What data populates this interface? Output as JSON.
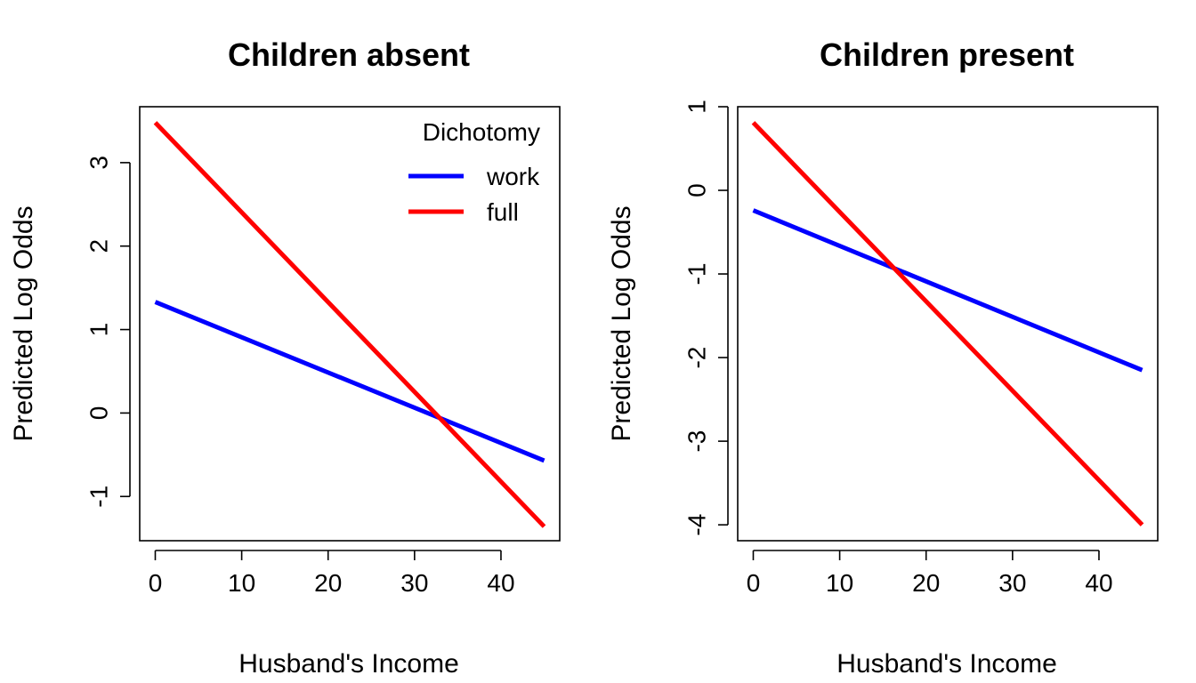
{
  "chart_data": [
    {
      "type": "line",
      "title": "Children absent",
      "xlabel": "Husband's Income",
      "ylabel": "Predicted Log Odds",
      "xlim": [
        -1.8,
        46.8
      ],
      "ylim": [
        -1.53,
        3.67
      ],
      "xticks": [
        0,
        10,
        20,
        30,
        40
      ],
      "yticks": [
        -1,
        0,
        1,
        2,
        3
      ],
      "grid": false,
      "legend": {
        "title": "Dichotomy",
        "position": "top-right"
      },
      "series": [
        {
          "name": "work",
          "color": "#0000FF",
          "x": [
            0,
            45
          ],
          "y": [
            1.33,
            -0.57
          ]
        },
        {
          "name": "full",
          "color": "#FF0000",
          "x": [
            0,
            45
          ],
          "y": [
            3.48,
            -1.36
          ]
        }
      ]
    },
    {
      "type": "line",
      "title": "Children present",
      "xlabel": "Husband's Income",
      "ylabel": "Predicted Log Odds",
      "xlim": [
        -1.8,
        46.8
      ],
      "ylim": [
        -4.19,
        1.0
      ],
      "xticks": [
        0,
        10,
        20,
        30,
        40
      ],
      "yticks": [
        -4,
        -3,
        -2,
        -1,
        0,
        1
      ],
      "grid": false,
      "legend": null,
      "series": [
        {
          "name": "work",
          "color": "#0000FF",
          "x": [
            0,
            45
          ],
          "y": [
            -0.24,
            -2.15
          ]
        },
        {
          "name": "full",
          "color": "#FF0000",
          "x": [
            0,
            45
          ],
          "y": [
            0.81,
            -4.0
          ]
        }
      ]
    }
  ]
}
